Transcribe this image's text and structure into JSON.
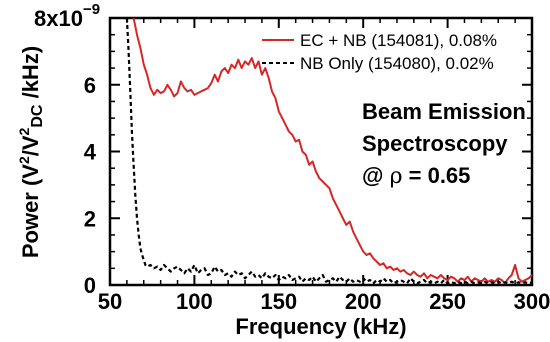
{
  "chart_data": {
    "type": "line",
    "title": "",
    "xlabel": "Frequency (kHz)",
    "ylabel": {
      "base": "Power (V",
      "exp1": "2",
      "mid": "/V",
      "exp2": "2",
      "sub": "DC",
      "tail": " /kHz)"
    },
    "y_multiplier": {
      "base": "8x10",
      "exponent": "−9"
    },
    "xlim": [
      50,
      300
    ],
    "ylim": [
      0,
      8
    ],
    "x_ticks": [
      50,
      100,
      150,
      200,
      250,
      300
    ],
    "y_ticks": [
      0,
      2,
      4,
      6
    ],
    "legend_position": "top-right",
    "series": [
      {
        "name": "EC + NB (154081), 0.08%",
        "color": "#d62728",
        "style": "solid",
        "x": [
          64,
          66,
          68,
          70,
          72,
          74,
          76,
          78,
          80,
          82,
          84,
          86,
          88,
          90,
          92,
          94,
          96,
          98,
          100,
          102,
          104,
          106,
          108,
          110,
          112,
          114,
          116,
          118,
          120,
          122,
          124,
          126,
          128,
          130,
          132,
          134,
          136,
          138,
          140,
          142,
          144,
          146,
          148,
          150,
          152,
          154,
          156,
          158,
          160,
          162,
          164,
          166,
          168,
          170,
          172,
          174,
          176,
          178,
          180,
          182,
          184,
          186,
          188,
          190,
          192,
          194,
          196,
          198,
          200,
          202,
          204,
          206,
          208,
          210,
          212,
          214,
          216,
          218,
          220,
          222,
          224,
          226,
          228,
          230,
          232,
          234,
          236,
          238,
          240,
          242,
          244,
          246,
          248,
          250,
          252,
          254,
          256,
          258,
          260,
          262,
          264,
          266,
          268,
          270,
          272,
          274,
          276,
          278,
          280,
          282,
          284,
          286,
          288,
          290,
          292,
          294,
          296,
          298,
          300
        ],
        "y": [
          8.0,
          7.5,
          7.1,
          6.6,
          6.3,
          5.9,
          5.7,
          5.85,
          5.75,
          5.8,
          6.0,
          5.85,
          5.65,
          5.75,
          6.1,
          5.9,
          5.8,
          5.85,
          5.7,
          5.75,
          5.8,
          5.85,
          5.9,
          6.05,
          6.3,
          6.1,
          6.4,
          6.5,
          6.35,
          6.6,
          6.5,
          6.75,
          6.5,
          6.7,
          6.6,
          6.8,
          6.5,
          6.7,
          6.3,
          6.5,
          6.2,
          5.8,
          5.6,
          5.2,
          5.0,
          4.8,
          4.6,
          4.5,
          4.3,
          4.35,
          4.0,
          3.9,
          3.6,
          3.7,
          3.4,
          3.2,
          3.1,
          3.0,
          2.9,
          2.6,
          2.4,
          2.2,
          2.0,
          1.8,
          1.9,
          1.6,
          1.4,
          1.2,
          1.0,
          0.9,
          0.95,
          0.8,
          0.7,
          0.6,
          0.65,
          0.5,
          0.55,
          0.45,
          0.5,
          0.4,
          0.45,
          0.35,
          0.3,
          0.4,
          0.3,
          0.25,
          0.35,
          0.2,
          0.3,
          0.25,
          0.2,
          0.3,
          0.2,
          0.15,
          0.25,
          0.2,
          0.1,
          0.2,
          0.15,
          0.25,
          0.1,
          0.2,
          0.15,
          0.1,
          0.2,
          0.1,
          0.15,
          0.1,
          0.2,
          0.15,
          0.05,
          0.2,
          0.3,
          0.6,
          0.2,
          0.1,
          0.15,
          0.2,
          0.3
        ]
      },
      {
        "name": "NB Only (154080), 0.02%",
        "color": "#000000",
        "style": "dashed",
        "x": [
          60,
          61,
          62,
          63,
          64,
          65,
          66,
          67,
          68,
          69,
          70,
          71,
          72,
          74,
          76,
          78,
          80,
          82,
          84,
          86,
          88,
          90,
          92,
          94,
          96,
          98,
          100,
          102,
          104,
          106,
          108,
          110,
          112,
          114,
          116,
          118,
          120,
          122,
          124,
          126,
          128,
          130,
          132,
          134,
          136,
          138,
          140,
          142,
          144,
          146,
          148,
          150,
          152,
          154,
          156,
          158,
          160,
          162,
          164,
          166,
          168,
          170,
          172,
          174,
          176,
          178,
          180,
          182,
          184,
          186,
          188,
          190,
          192,
          194,
          196,
          198,
          200,
          202,
          204,
          206,
          208,
          210,
          212,
          214,
          216,
          218,
          220,
          222,
          224,
          226,
          228,
          230,
          232,
          234,
          236,
          238,
          240,
          242,
          244,
          246,
          248,
          250,
          252,
          254,
          256,
          258,
          260,
          262,
          264,
          266,
          268,
          270,
          272,
          274,
          276,
          278,
          280,
          282,
          284,
          286,
          288,
          290,
          292,
          294,
          296,
          298,
          300
        ],
        "y": [
          8.0,
          7.0,
          5.8,
          4.6,
          3.6,
          2.7,
          2.0,
          1.5,
          1.1,
          0.9,
          0.75,
          0.6,
          0.55,
          0.6,
          0.5,
          0.55,
          0.45,
          0.6,
          0.5,
          0.4,
          0.5,
          0.55,
          0.45,
          0.35,
          0.5,
          0.4,
          0.6,
          0.35,
          0.45,
          0.5,
          0.3,
          0.35,
          0.55,
          0.4,
          0.45,
          0.3,
          0.35,
          0.25,
          0.4,
          0.3,
          0.35,
          0.2,
          0.3,
          0.4,
          0.25,
          0.3,
          0.2,
          0.35,
          0.25,
          0.2,
          0.3,
          0.15,
          0.25,
          0.2,
          0.3,
          0.15,
          0.2,
          0.25,
          0.1,
          0.2,
          0.15,
          0.25,
          0.1,
          0.2,
          0.3,
          0.1,
          0.15,
          0.2,
          0.1,
          0.25,
          0.15,
          0.1,
          0.2,
          0.1,
          0.15,
          0.1,
          0.2,
          0.1,
          0.15,
          0.05,
          0.15,
          0.1,
          0.2,
          0.1,
          0.15,
          0.05,
          0.1,
          0.15,
          0.1,
          0.05,
          0.2,
          0.1,
          0.05,
          0.1,
          0.15,
          0.05,
          0.1,
          0.05,
          0.1,
          0.05,
          0.15,
          0.05,
          0.1,
          0.05,
          0.1,
          0.05,
          0.1,
          0.05,
          0.1,
          0.05,
          0.08,
          0.05,
          0.1,
          0.05,
          0.08,
          0.05,
          0.1,
          0.05,
          0.08,
          0.05,
          0.1,
          0.05,
          0.08,
          0.05,
          0.08,
          0.05,
          0.08
        ]
      }
    ],
    "annotation": {
      "line1": "Beam Emission",
      "line2": "Spectroscopy",
      "line3_prefix": "@ ",
      "line3_symbol": "ρ",
      "line3_suffix": " = 0.65"
    }
  }
}
